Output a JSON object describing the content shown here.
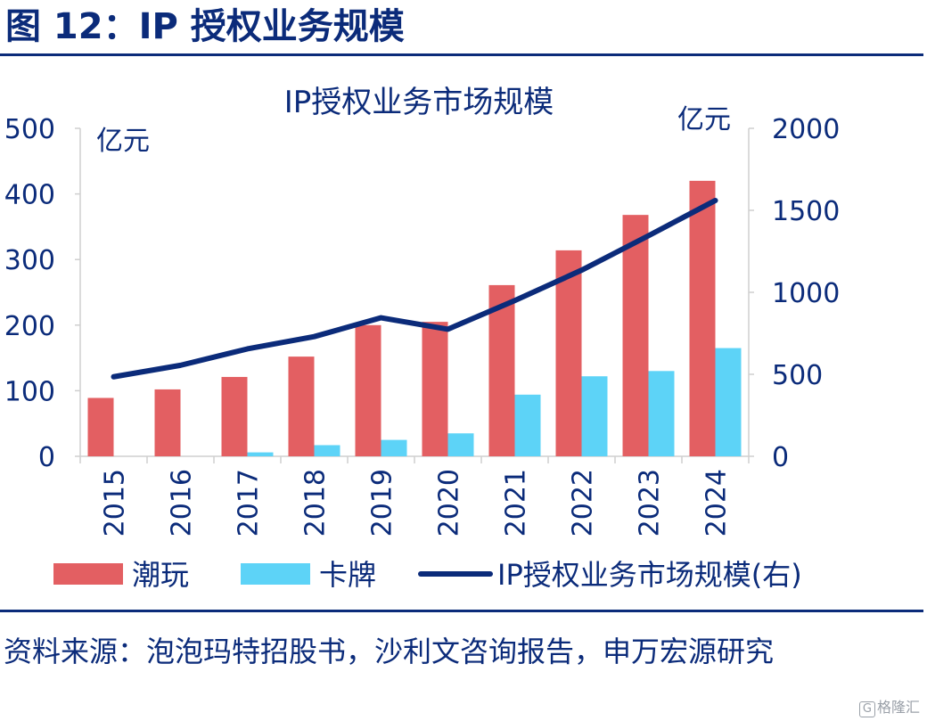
{
  "figure": {
    "title": "图 12：IP 授权业务规模",
    "source": "资料来源：泡泡玛特招股书，沙利文咨询报告，申万宏源研究",
    "watermark": "格隆汇",
    "watermark_mark": "G"
  },
  "chart_data": {
    "type": "bar",
    "title": "IP授权业务市场规模",
    "categories": [
      "2015",
      "2016",
      "2017",
      "2018",
      "2019",
      "2020",
      "2021",
      "2022",
      "2023",
      "2024"
    ],
    "y_left": {
      "unit": "亿元",
      "min": 0,
      "max": 500,
      "ticks": [
        0,
        100,
        200,
        300,
        400,
        500
      ]
    },
    "y_right": {
      "unit": "亿元",
      "min": 0,
      "max": 2000,
      "ticks": [
        0,
        500,
        1000,
        1500,
        2000
      ]
    },
    "series": [
      {
        "name": "潮玩",
        "type": "bar",
        "axis": "left",
        "color": "#e35f62",
        "values": [
          89,
          102,
          121,
          152,
          200,
          205,
          261,
          314,
          368,
          420
        ]
      },
      {
        "name": "卡牌",
        "type": "bar",
        "axis": "left",
        "color": "#5dd3f7",
        "values": [
          0,
          0,
          6,
          17,
          25,
          35,
          94,
          122,
          130,
          165
        ]
      },
      {
        "name": "IP授权业务市场规模(右)",
        "type": "line",
        "axis": "right",
        "color": "#0b2b7a",
        "values": [
          485,
          555,
          655,
          730,
          845,
          775,
          950,
          1135,
          1345,
          1560
        ]
      }
    ],
    "legend": "bottom",
    "grid": false
  }
}
